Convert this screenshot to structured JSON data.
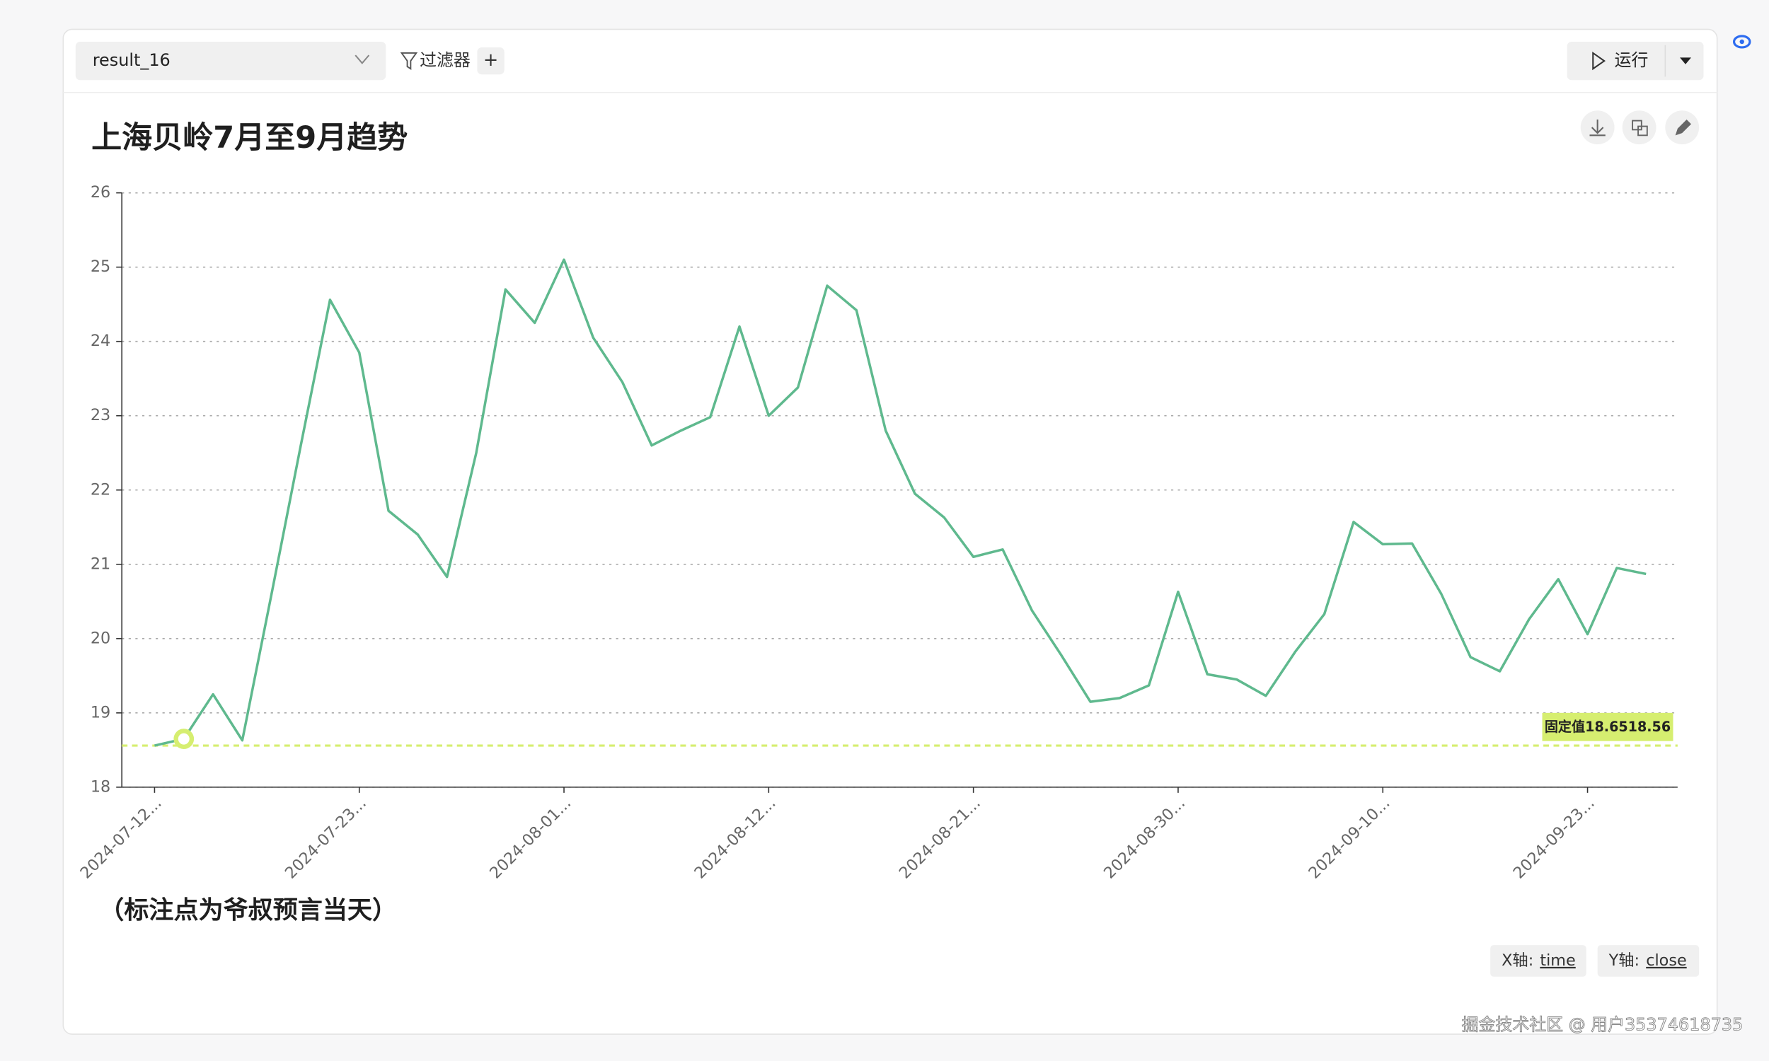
{
  "toolbar": {
    "dataset": "result_16",
    "filter": "过滤器",
    "add": "+",
    "run": "运行"
  },
  "chart_data": {
    "type": "line",
    "title": "上海贝岭7月至9月趋势",
    "categories": [
      "2024-07-12...",
      null,
      null,
      null,
      null,
      null,
      null,
      "2024-07-23...",
      null,
      null,
      null,
      null,
      null,
      null,
      "2024-08-01...",
      null,
      null,
      null,
      null,
      null,
      null,
      "2024-08-12...",
      null,
      null,
      null,
      null,
      null,
      null,
      "2024-08-21...",
      null,
      null,
      null,
      null,
      null,
      null,
      "2024-08-30...",
      null,
      null,
      null,
      null,
      null,
      null,
      "2024-09-10...",
      null,
      null,
      null,
      null,
      null,
      null,
      "2024-09-23...",
      null,
      null
    ],
    "values": [
      18.56,
      18.65,
      19.25,
      18.63,
      20.6,
      22.6,
      24.56,
      23.85,
      21.72,
      21.4,
      20.83,
      22.5,
      24.7,
      24.25,
      25.1,
      24.05,
      23.45,
      22.6,
      22.8,
      22.98,
      24.2,
      23.0,
      23.38,
      24.75,
      24.42,
      22.8,
      21.95,
      21.63,
      21.1,
      21.2,
      20.38,
      19.78,
      19.15,
      19.2,
      19.37,
      20.63,
      19.52,
      19.45,
      19.23,
      19.82,
      20.33,
      21.57,
      21.27,
      21.28,
      20.6,
      19.75,
      19.56,
      20.26,
      20.8,
      20.06,
      20.95,
      20.87
    ],
    "color": "#5fb98e",
    "ylim": [
      18,
      26
    ],
    "yticks": [
      18,
      19,
      20,
      21,
      22,
      23,
      24,
      25,
      26
    ],
    "grid": true,
    "reference_line": {
      "value": 18.56,
      "label": "固定值18.6518.56",
      "color": "#d6ee70"
    },
    "marked_index": 1,
    "note": "（标注点为爷叔预言当天）"
  },
  "axis_info": {
    "x_label": "X轴:",
    "x_field": "time",
    "y_label": "Y轴:",
    "y_field": "close"
  },
  "watermark": "掘金技术社区 @ 用户35374618735"
}
